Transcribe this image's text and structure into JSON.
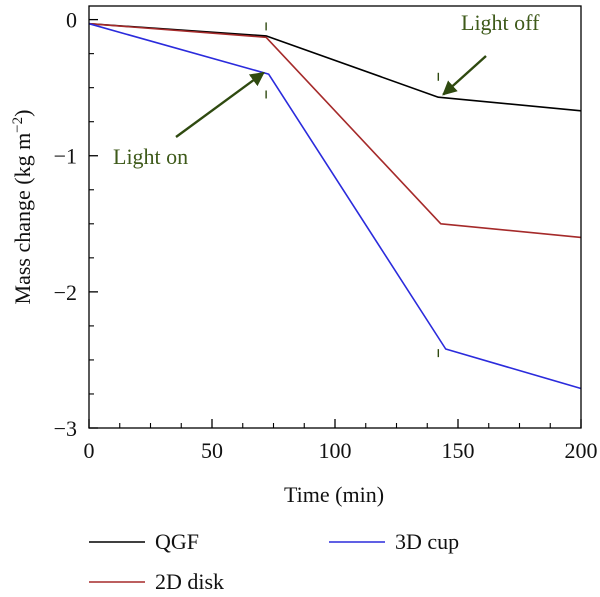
{
  "chart_data": {
    "type": "line",
    "xlabel": "Time (min)",
    "ylabel": "Mass change (kg m",
    "ylabel_sup": "−2",
    "ylabel_close": ")",
    "xlim": [
      0,
      200
    ],
    "ylim": [
      -3,
      0.1
    ],
    "xticks": [
      0,
      50,
      100,
      150,
      200
    ],
    "xtick_labels": [
      "0",
      "50",
      "100",
      "150",
      "200"
    ],
    "yticks": [
      0,
      -1,
      -2,
      -3
    ],
    "ytick_labels": [
      "0",
      "−1",
      "−2",
      "−3"
    ],
    "legend": "bottom",
    "series": [
      {
        "name": "QGF",
        "color": "#000000",
        "x": [
          0,
          72,
          142,
          200
        ],
        "y": [
          -0.03,
          -0.12,
          -0.57,
          -0.67
        ]
      },
      {
        "name": "2D disk",
        "color": "#a52a2a",
        "x": [
          0,
          72,
          143,
          200
        ],
        "y": [
          -0.03,
          -0.13,
          -1.5,
          -1.6
        ]
      },
      {
        "name": "3D cup",
        "color": "#2b2bdc",
        "x": [
          0,
          73,
          145,
          200
        ],
        "y": [
          -0.03,
          -0.4,
          -2.42,
          -2.71
        ]
      }
    ],
    "annotations": [
      {
        "text": "Light on",
        "color": "#3e5a1a",
        "arrow_to": [
          71,
          -0.39
        ]
      },
      {
        "text": "Light off",
        "color": "#3e5a1a",
        "arrow_to": [
          144,
          -0.55
        ]
      }
    ],
    "markers": [
      {
        "x": 72,
        "y": -0.05
      },
      {
        "x": 72,
        "y": -0.55
      },
      {
        "x": 142,
        "y": -0.42
      },
      {
        "x": 142,
        "y": -2.45
      }
    ]
  }
}
